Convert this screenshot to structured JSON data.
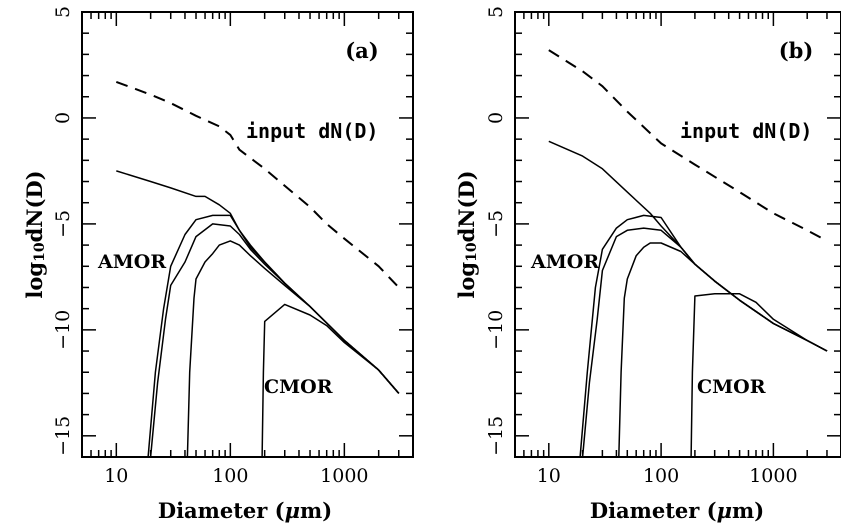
{
  "chart_data": [
    {
      "type": "line",
      "panel_label": "(a)",
      "xlabel_parts": [
        "Diameter (",
        "μ",
        "m)"
      ],
      "ylabel_parts": [
        "log",
        "10",
        "dN(D)"
      ],
      "xscale": "log",
      "xlim": [
        5,
        4000
      ],
      "ylim": [
        -16,
        5
      ],
      "x_ticks": [
        10,
        100,
        1000
      ],
      "x_tick_labels": [
        "10",
        "100",
        "1000"
      ],
      "y_ticks": [
        5,
        0,
        -5,
        -10,
        -15
      ],
      "y_tick_labels": [
        "5",
        "0",
        "−5",
        "−10",
        "−15"
      ],
      "annotations": {
        "input": "input dN(D)",
        "amor": "AMOR",
        "cmor": "CMOR"
      },
      "series": [
        {
          "style": "dashed",
          "x": [
            10,
            20,
            30,
            50,
            80,
            100,
            120,
            200,
            300,
            500,
            700,
            1000,
            2000,
            3000
          ],
          "y": [
            1.7,
            1.1,
            0.7,
            0.1,
            -0.4,
            -0.8,
            -1.5,
            -2.4,
            -3.2,
            -4.2,
            -5.0,
            -5.7,
            -7.0,
            -8.0
          ]
        },
        {
          "style": "solid",
          "x": [
            10,
            20,
            30,
            50,
            60,
            80,
            100,
            120,
            150,
            200,
            300,
            500,
            1000,
            2000,
            3000
          ],
          "y": [
            -2.5,
            -3.0,
            -3.3,
            -3.7,
            -3.7,
            -4.1,
            -4.5,
            -5.3,
            -6.1,
            -6.8,
            -7.8,
            -8.9,
            -10.5,
            -11.9,
            -13.0
          ]
        },
        {
          "style": "solid",
          "x": [
            19,
            22,
            26,
            30,
            40,
            50,
            70,
            100,
            120,
            150,
            200,
            300,
            500,
            1000,
            2000,
            3000
          ],
          "y": [
            -16,
            -12,
            -9.0,
            -7.0,
            -5.5,
            -4.8,
            -4.6,
            -4.6,
            -5.3,
            -6.0,
            -6.8,
            -7.8,
            -8.9,
            -10.5,
            -11.9,
            -13.0
          ]
        },
        {
          "style": "solid",
          "x": [
            20,
            23,
            27,
            30,
            40,
            50,
            70,
            100,
            120,
            150,
            200,
            300,
            500,
            1000,
            2000,
            3000
          ],
          "y": [
            -16,
            -12.5,
            -9.5,
            -7.9,
            -6.8,
            -5.6,
            -5.0,
            -5.1,
            -5.5,
            -6.2,
            -6.9,
            -7.8,
            -8.9,
            -10.5,
            -11.9,
            -13.0
          ]
        },
        {
          "style": "solid",
          "x": [
            42,
            44,
            48,
            50,
            60,
            70,
            80,
            100,
            120,
            150,
            200,
            300,
            500,
            1000,
            2000,
            3000
          ],
          "y": [
            -16,
            -12,
            -8.5,
            -7.6,
            -6.8,
            -6.4,
            -6.0,
            -5.8,
            -6.0,
            -6.5,
            -7.1,
            -7.9,
            -8.9,
            -10.5,
            -11.9,
            -13.0
          ]
        },
        {
          "style": "solid",
          "x": [
            190,
            195,
            200,
            300,
            500,
            700,
            1000,
            2000,
            3000
          ],
          "y": [
            -16,
            -12,
            -9.6,
            -8.8,
            -9.3,
            -9.8,
            -10.6,
            -11.9,
            -13.0
          ]
        }
      ]
    },
    {
      "type": "line",
      "panel_label": "(b)",
      "xlabel_parts": [
        "Diameter (",
        "μ",
        "m)"
      ],
      "ylabel_parts": [
        "log",
        "10",
        "dN(D)"
      ],
      "xscale": "log",
      "xlim": [
        5,
        4000
      ],
      "ylim": [
        -16,
        5
      ],
      "x_ticks": [
        10,
        100,
        1000
      ],
      "x_tick_labels": [
        "10",
        "100",
        "1000"
      ],
      "y_ticks": [
        5,
        0,
        -5,
        -10,
        -15
      ],
      "y_tick_labels": [
        "5",
        "0",
        "−5",
        "−10",
        "−15"
      ],
      "annotations": {
        "input": "input dN(D)",
        "amor": "AMOR",
        "cmor": "CMOR"
      },
      "series": [
        {
          "style": "dashed",
          "x": [
            10,
            20,
            30,
            50,
            100,
            200,
            500,
            1000,
            2000,
            3000
          ],
          "y": [
            3.2,
            2.2,
            1.5,
            0.3,
            -1.2,
            -2.2,
            -3.5,
            -4.5,
            -5.3,
            -5.8
          ]
        },
        {
          "style": "solid",
          "x": [
            10,
            20,
            30,
            50,
            80,
            100,
            150,
            200,
            300,
            500,
            1000,
            2000,
            3000
          ],
          "y": [
            -1.1,
            -1.8,
            -2.4,
            -3.5,
            -4.5,
            -5.1,
            -6.1,
            -6.9,
            -7.7,
            -8.6,
            -9.7,
            -10.5,
            -11.0
          ]
        },
        {
          "style": "solid",
          "x": [
            19,
            22,
            26,
            30,
            40,
            50,
            70,
            100,
            150,
            200,
            300,
            500,
            1000,
            2000,
            3000
          ],
          "y": [
            -16,
            -12,
            -8.0,
            -6.2,
            -5.2,
            -4.8,
            -4.6,
            -4.7,
            -6.1,
            -6.9,
            -7.7,
            -8.6,
            -9.7,
            -10.5,
            -11.0
          ]
        },
        {
          "style": "solid",
          "x": [
            20,
            23,
            27,
            30,
            40,
            50,
            70,
            100,
            150,
            200,
            300,
            500,
            1000,
            2000,
            3000
          ],
          "y": [
            -16,
            -12.5,
            -9.5,
            -7.2,
            -5.6,
            -5.3,
            -5.2,
            -5.3,
            -6.1,
            -6.9,
            -7.7,
            -8.6,
            -9.7,
            -10.5,
            -11.0
          ]
        },
        {
          "style": "solid",
          "x": [
            42,
            44,
            47,
            50,
            60,
            70,
            80,
            100,
            150,
            200,
            300,
            500,
            1000,
            2000,
            3000
          ],
          "y": [
            -16,
            -12,
            -8.5,
            -7.6,
            -6.5,
            -6.1,
            -5.9,
            -5.9,
            -6.3,
            -6.9,
            -7.7,
            -8.6,
            -9.7,
            -10.5,
            -11.0
          ]
        },
        {
          "style": "solid",
          "x": [
            185,
            190,
            200,
            300,
            500,
            700,
            1000,
            2000,
            3000
          ],
          "y": [
            -16,
            -12,
            -8.4,
            -8.3,
            -8.3,
            -8.7,
            -9.5,
            -10.5,
            -11.0
          ]
        }
      ]
    }
  ]
}
